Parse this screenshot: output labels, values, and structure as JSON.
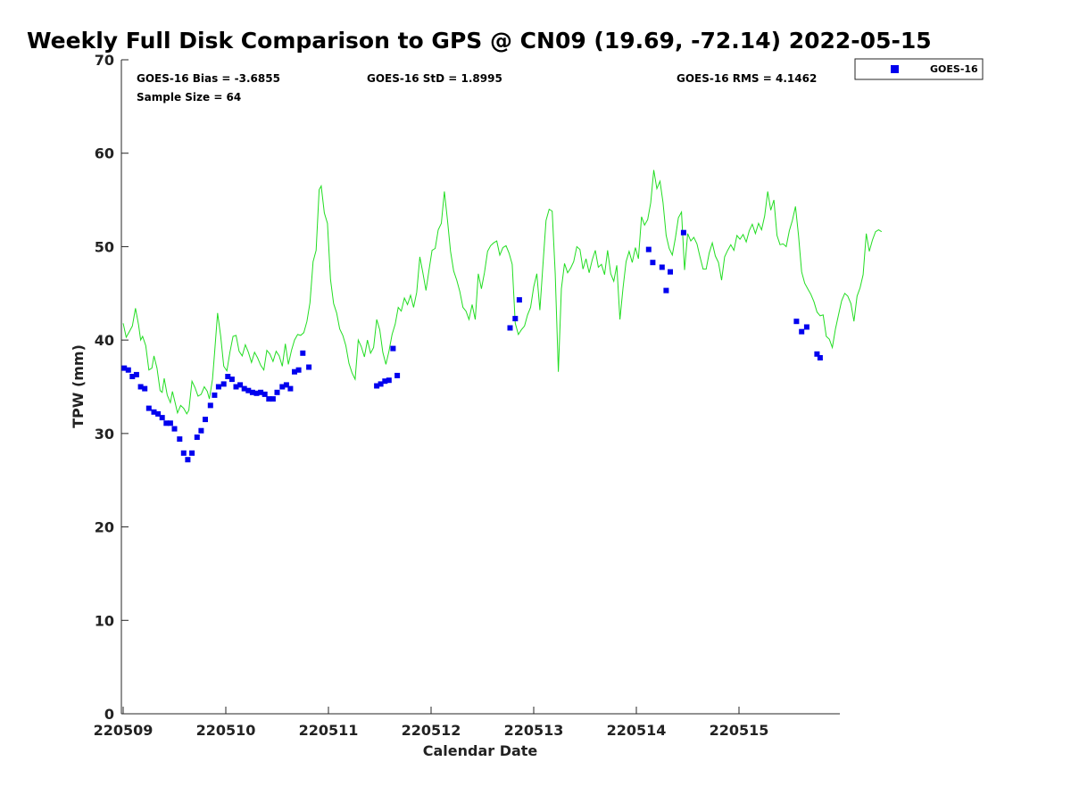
{
  "chart_data": {
    "type": "scatter",
    "title": "Weekly Full Disk Comparison to GPS @ CN09 (19.69, -72.14) 2022-05-15",
    "xlabel": "Calendar Date",
    "ylabel": "TPW (mm)",
    "xlim": [
      0,
      7
    ],
    "ylim": [
      0,
      70
    ],
    "x_ticks": [
      0,
      1,
      2,
      3,
      4,
      5,
      6
    ],
    "x_tick_labels": [
      "220509",
      "220510",
      "220511",
      "220512",
      "220513",
      "220514",
      "220515"
    ],
    "y_ticks": [
      0,
      10,
      20,
      30,
      40,
      50,
      60,
      70
    ],
    "y_tick_labels": [
      "0",
      "10",
      "20",
      "30",
      "40",
      "50",
      "60",
      "70"
    ],
    "grid": false,
    "legend_position": "top-right-outside",
    "stats": {
      "bias": "GOES-16 Bias = -3.6855",
      "std": "GOES-16 StD = 1.8995",
      "rms": "GOES-16 RMS = 4.1462",
      "sample": "Sample Size = 64"
    },
    "gps_color": "#22dd22",
    "gps_line": [
      [
        0.0,
        41.8
      ],
      [
        0.03,
        40.3
      ],
      [
        0.06,
        40.9
      ],
      [
        0.09,
        41.5
      ],
      [
        0.12,
        43.4
      ],
      [
        0.15,
        41.6
      ],
      [
        0.17,
        40.0
      ],
      [
        0.19,
        40.4
      ],
      [
        0.22,
        39.4
      ],
      [
        0.25,
        36.8
      ],
      [
        0.28,
        37.0
      ],
      [
        0.3,
        38.3
      ],
      [
        0.33,
        37.0
      ],
      [
        0.36,
        34.6
      ],
      [
        0.38,
        34.4
      ],
      [
        0.4,
        35.9
      ],
      [
        0.43,
        34.1
      ],
      [
        0.46,
        33.3
      ],
      [
        0.48,
        34.5
      ],
      [
        0.5,
        33.6
      ],
      [
        0.53,
        32.2
      ],
      [
        0.56,
        33.0
      ],
      [
        0.59,
        32.7
      ],
      [
        0.62,
        32.1
      ],
      [
        0.64,
        32.5
      ],
      [
        0.67,
        35.6
      ],
      [
        0.7,
        34.9
      ],
      [
        0.73,
        34.0
      ],
      [
        0.76,
        34.2
      ],
      [
        0.79,
        35.0
      ],
      [
        0.82,
        34.5
      ],
      [
        0.84,
        33.7
      ],
      [
        0.87,
        35.8
      ],
      [
        0.89,
        38.6
      ],
      [
        0.92,
        42.9
      ],
      [
        0.95,
        40.4
      ],
      [
        0.98,
        37.2
      ],
      [
        1.01,
        36.7
      ],
      [
        1.04,
        38.7
      ],
      [
        1.07,
        40.4
      ],
      [
        1.1,
        40.5
      ],
      [
        1.13,
        38.8
      ],
      [
        1.16,
        38.3
      ],
      [
        1.19,
        39.5
      ],
      [
        1.22,
        38.7
      ],
      [
        1.25,
        37.6
      ],
      [
        1.28,
        38.7
      ],
      [
        1.31,
        38.1
      ],
      [
        1.34,
        37.3
      ],
      [
        1.37,
        36.8
      ],
      [
        1.4,
        38.9
      ],
      [
        1.43,
        38.5
      ],
      [
        1.46,
        37.7
      ],
      [
        1.49,
        38.8
      ],
      [
        1.52,
        38.3
      ],
      [
        1.55,
        37.2
      ],
      [
        1.58,
        39.6
      ],
      [
        1.61,
        37.4
      ],
      [
        1.64,
        38.9
      ],
      [
        1.67,
        40.0
      ],
      [
        1.7,
        40.6
      ],
      [
        1.73,
        40.5
      ],
      [
        1.76,
        40.8
      ],
      [
        1.79,
        42.0
      ],
      [
        1.82,
        44.0
      ],
      [
        1.85,
        48.4
      ],
      [
        1.88,
        49.6
      ],
      [
        1.91,
        56.1
      ],
      [
        1.93,
        56.5
      ],
      [
        1.96,
        53.6
      ],
      [
        1.99,
        52.5
      ],
      [
        2.02,
        46.5
      ],
      [
        2.05,
        43.9
      ],
      [
        2.08,
        42.9
      ],
      [
        2.11,
        41.2
      ],
      [
        2.14,
        40.5
      ],
      [
        2.17,
        39.4
      ],
      [
        2.2,
        37.5
      ],
      [
        2.23,
        36.5
      ],
      [
        2.26,
        35.8
      ],
      [
        2.29,
        40.0
      ],
      [
        2.32,
        39.3
      ],
      [
        2.35,
        38.2
      ],
      [
        2.38,
        40.0
      ],
      [
        2.41,
        38.6
      ],
      [
        2.44,
        39.2
      ],
      [
        2.47,
        42.2
      ],
      [
        2.5,
        41.1
      ],
      [
        2.53,
        38.7
      ],
      [
        2.56,
        37.4
      ],
      [
        2.59,
        38.8
      ],
      [
        2.62,
        40.6
      ],
      [
        2.65,
        41.7
      ],
      [
        2.68,
        43.5
      ],
      [
        2.71,
        43.1
      ],
      [
        2.74,
        44.5
      ],
      [
        2.77,
        43.8
      ],
      [
        2.8,
        44.8
      ],
      [
        2.83,
        43.5
      ],
      [
        2.86,
        45.1
      ],
      [
        2.89,
        48.9
      ],
      [
        2.92,
        47.2
      ],
      [
        2.95,
        45.3
      ],
      [
        2.98,
        47.5
      ],
      [
        3.01,
        49.6
      ],
      [
        3.04,
        49.8
      ],
      [
        3.07,
        51.8
      ],
      [
        3.1,
        52.5
      ],
      [
        3.13,
        55.9
      ],
      [
        3.16,
        52.8
      ],
      [
        3.19,
        49.5
      ],
      [
        3.22,
        47.4
      ],
      [
        3.25,
        46.4
      ],
      [
        3.28,
        45.2
      ],
      [
        3.31,
        43.5
      ],
      [
        3.34,
        43.1
      ],
      [
        3.37,
        42.2
      ],
      [
        3.4,
        43.8
      ],
      [
        3.43,
        42.2
      ],
      [
        3.46,
        47.1
      ],
      [
        3.49,
        45.5
      ],
      [
        3.52,
        47.2
      ],
      [
        3.55,
        49.5
      ],
      [
        3.58,
        50.1
      ],
      [
        3.61,
        50.4
      ],
      [
        3.64,
        50.6
      ],
      [
        3.67,
        49.1
      ],
      [
        3.7,
        49.9
      ],
      [
        3.73,
        50.1
      ],
      [
        3.76,
        49.3
      ],
      [
        3.79,
        48.1
      ],
      [
        3.82,
        41.8
      ],
      [
        3.85,
        40.6
      ],
      [
        3.88,
        41.1
      ],
      [
        3.91,
        41.5
      ],
      [
        3.94,
        42.7
      ],
      [
        3.97,
        43.5
      ],
      [
        4.0,
        45.7
      ],
      [
        4.03,
        47.1
      ],
      [
        4.06,
        43.2
      ],
      [
        4.09,
        48.0
      ],
      [
        4.12,
        52.8
      ],
      [
        4.15,
        54.0
      ],
      [
        4.18,
        53.8
      ],
      [
        4.21,
        47.1
      ],
      [
        4.24,
        36.6
      ],
      [
        4.27,
        45.5
      ],
      [
        4.3,
        48.2
      ],
      [
        4.33,
        47.2
      ],
      [
        4.36,
        47.7
      ],
      [
        4.39,
        48.4
      ],
      [
        4.42,
        50.0
      ],
      [
        4.45,
        49.7
      ],
      [
        4.48,
        47.6
      ],
      [
        4.51,
        48.7
      ],
      [
        4.54,
        47.2
      ],
      [
        4.57,
        48.6
      ],
      [
        4.6,
        49.6
      ],
      [
        4.63,
        47.8
      ],
      [
        4.66,
        48.1
      ],
      [
        4.69,
        47.0
      ],
      [
        4.72,
        49.6
      ],
      [
        4.75,
        47.1
      ],
      [
        4.78,
        46.3
      ],
      [
        4.81,
        48.0
      ],
      [
        4.84,
        42.2
      ],
      [
        4.87,
        45.6
      ],
      [
        4.9,
        48.4
      ],
      [
        4.93,
        49.5
      ],
      [
        4.96,
        48.3
      ],
      [
        4.99,
        49.9
      ],
      [
        5.02,
        48.7
      ],
      [
        5.05,
        53.2
      ],
      [
        5.08,
        52.3
      ],
      [
        5.11,
        52.9
      ],
      [
        5.14,
        54.7
      ],
      [
        5.17,
        58.2
      ],
      [
        5.2,
        56.2
      ],
      [
        5.23,
        57.0
      ],
      [
        5.26,
        54.7
      ],
      [
        5.29,
        51.2
      ],
      [
        5.32,
        49.8
      ],
      [
        5.35,
        49.1
      ],
      [
        5.38,
        50.9
      ],
      [
        5.41,
        53.1
      ],
      [
        5.44,
        53.7
      ],
      [
        5.47,
        47.5
      ],
      [
        5.5,
        51.4
      ],
      [
        5.53,
        50.6
      ],
      [
        5.56,
        51.0
      ],
      [
        5.59,
        50.3
      ],
      [
        5.62,
        48.9
      ],
      [
        5.65,
        47.6
      ],
      [
        5.68,
        47.6
      ],
      [
        5.71,
        49.3
      ],
      [
        5.74,
        50.4
      ],
      [
        5.77,
        49.0
      ],
      [
        5.8,
        48.3
      ],
      [
        5.83,
        46.4
      ],
      [
        5.86,
        48.9
      ],
      [
        5.89,
        49.6
      ],
      [
        5.92,
        50.2
      ],
      [
        5.95,
        49.6
      ],
      [
        5.98,
        51.2
      ],
      [
        6.01,
        50.8
      ],
      [
        6.04,
        51.3
      ],
      [
        6.07,
        50.5
      ],
      [
        6.1,
        51.7
      ],
      [
        6.13,
        52.4
      ],
      [
        6.16,
        51.4
      ],
      [
        6.19,
        52.5
      ],
      [
        6.22,
        51.8
      ],
      [
        6.25,
        53.3
      ],
      [
        6.28,
        55.9
      ],
      [
        6.31,
        53.9
      ],
      [
        6.34,
        55.0
      ],
      [
        6.37,
        51.2
      ],
      [
        6.4,
        50.2
      ],
      [
        6.43,
        50.3
      ],
      [
        6.46,
        50.0
      ],
      [
        6.49,
        51.7
      ],
      [
        6.52,
        52.8
      ],
      [
        6.55,
        54.3
      ],
      [
        6.58,
        51.2
      ],
      [
        6.61,
        47.3
      ],
      [
        6.64,
        46.1
      ],
      [
        6.67,
        45.5
      ],
      [
        6.7,
        44.9
      ],
      [
        6.73,
        44.1
      ],
      [
        6.76,
        43.0
      ],
      [
        6.79,
        42.6
      ],
      [
        6.82,
        42.7
      ],
      [
        6.85,
        40.4
      ],
      [
        6.88,
        40.1
      ],
      [
        6.91,
        39.2
      ],
      [
        6.94,
        41.2
      ],
      [
        6.97,
        42.7
      ],
      [
        7.0,
        44.2
      ],
      [
        7.03,
        45.0
      ],
      [
        7.06,
        44.7
      ],
      [
        7.09,
        43.9
      ],
      [
        7.12,
        42.0
      ],
      [
        7.15,
        44.7
      ],
      [
        7.18,
        45.6
      ],
      [
        7.21,
        47.0
      ],
      [
        7.24,
        51.4
      ],
      [
        7.27,
        49.5
      ],
      [
        7.3,
        50.7
      ],
      [
        7.33,
        51.6
      ],
      [
        7.36,
        51.8
      ],
      [
        7.39,
        51.6
      ]
    ],
    "series": [
      {
        "name": "GOES-16",
        "color": "#0000ee",
        "points": [
          [
            0.01,
            37.0
          ],
          [
            0.05,
            36.8
          ],
          [
            0.09,
            36.1
          ],
          [
            0.13,
            36.3
          ],
          [
            0.17,
            35.0
          ],
          [
            0.21,
            34.8
          ],
          [
            0.25,
            32.7
          ],
          [
            0.3,
            32.3
          ],
          [
            0.34,
            32.1
          ],
          [
            0.38,
            31.7
          ],
          [
            0.42,
            31.1
          ],
          [
            0.46,
            31.1
          ],
          [
            0.5,
            30.5
          ],
          [
            0.55,
            29.4
          ],
          [
            0.59,
            27.9
          ],
          [
            0.63,
            27.2
          ],
          [
            0.67,
            27.9
          ],
          [
            0.72,
            29.6
          ],
          [
            0.76,
            30.3
          ],
          [
            0.8,
            31.5
          ],
          [
            0.85,
            33.0
          ],
          [
            0.89,
            34.1
          ],
          [
            0.93,
            35.0
          ],
          [
            0.98,
            35.3
          ],
          [
            1.02,
            36.1
          ],
          [
            1.06,
            35.8
          ],
          [
            1.1,
            35.0
          ],
          [
            1.14,
            35.2
          ],
          [
            1.18,
            34.8
          ],
          [
            1.22,
            34.6
          ],
          [
            1.26,
            34.4
          ],
          [
            1.3,
            34.3
          ],
          [
            1.34,
            34.4
          ],
          [
            1.38,
            34.2
          ],
          [
            1.42,
            33.7
          ],
          [
            1.46,
            33.7
          ],
          [
            1.5,
            34.4
          ],
          [
            1.55,
            35.0
          ],
          [
            1.59,
            35.2
          ],
          [
            1.63,
            34.8
          ],
          [
            1.67,
            36.6
          ],
          [
            1.71,
            36.8
          ],
          [
            1.75,
            38.6
          ],
          [
            1.81,
            37.1
          ],
          [
            2.47,
            35.1
          ],
          [
            2.51,
            35.3
          ],
          [
            2.55,
            35.6
          ],
          [
            2.59,
            35.7
          ],
          [
            2.63,
            39.1
          ],
          [
            2.67,
            36.2
          ],
          [
            3.77,
            41.3
          ],
          [
            3.82,
            42.3
          ],
          [
            3.86,
            44.3
          ],
          [
            5.12,
            49.7
          ],
          [
            5.16,
            48.3
          ],
          [
            5.25,
            47.8
          ],
          [
            5.29,
            45.3
          ],
          [
            5.33,
            47.3
          ],
          [
            5.46,
            51.5
          ],
          [
            6.56,
            42.0
          ],
          [
            6.61,
            40.9
          ],
          [
            6.66,
            41.4
          ],
          [
            6.76,
            38.5
          ],
          [
            6.79,
            38.1
          ]
        ]
      }
    ]
  }
}
